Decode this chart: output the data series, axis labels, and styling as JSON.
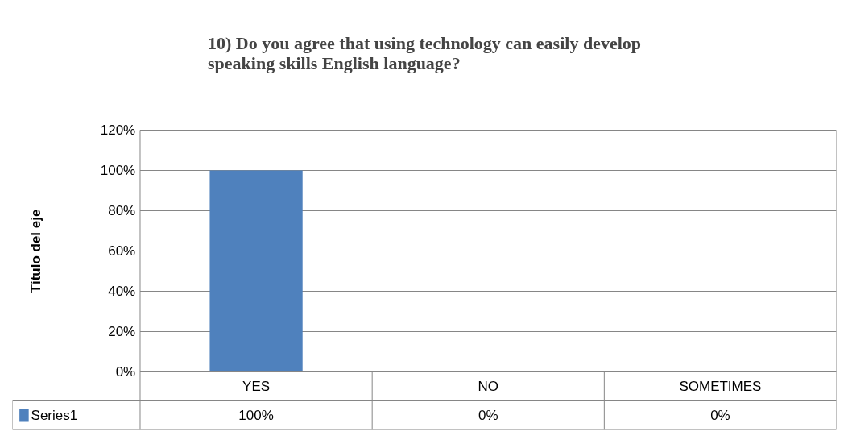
{
  "chart_data": {
    "type": "bar",
    "title": "10) Do you agree that using technology can easily develop\nspeaking skills English language?",
    "ylabel": "Título del eje",
    "categories": [
      "YES",
      "NO",
      "SOMETIMES"
    ],
    "series": [
      {
        "name": "Series1",
        "color": "#4f81bd",
        "values": [
          100,
          0,
          0
        ],
        "value_labels": [
          "100%",
          "0%",
          "0%"
        ]
      }
    ],
    "ylim": [
      0,
      120
    ],
    "yticks": [
      {
        "value": 0,
        "label": "0%"
      },
      {
        "value": 20,
        "label": "20%"
      },
      {
        "value": 40,
        "label": "40%"
      },
      {
        "value": 60,
        "label": "60%"
      },
      {
        "value": 80,
        "label": "80%"
      },
      {
        "value": 100,
        "label": "100%"
      },
      {
        "value": 120,
        "label": "120%"
      }
    ],
    "grid": "y"
  }
}
